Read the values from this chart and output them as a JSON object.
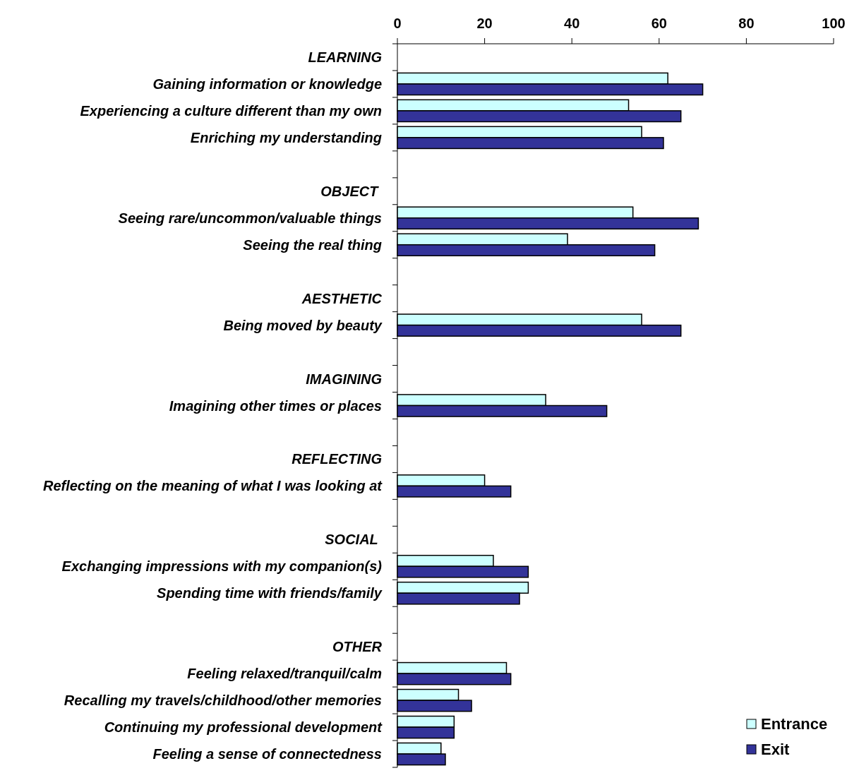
{
  "chart_data": {
    "type": "bar",
    "orientation": "horizontal",
    "categories": [
      "LEARNING",
      "Gaining information or knowledge",
      "Experiencing a culture different than my own",
      "Enriching my understanding",
      null,
      "OBJECT ",
      "Seeing rare/uncommon/valuable things",
      "Seeing the real thing",
      null,
      "AESTHETIC",
      "Being moved by beauty",
      null,
      "IMAGINING",
      "Imagining other times or places",
      null,
      "REFLECTING",
      "Reflecting on the meaning of what I was looking at",
      null,
      "SOCIAL ",
      "Exchanging impressions with my companion(s)",
      "Spending time with friends/family",
      null,
      "OTHER",
      "Feeling relaxed/tranquil/calm",
      "Recalling my travels/childhood/other memories",
      "Continuing my professional development",
      "Feeling a sense of connectedness"
    ],
    "series": [
      {
        "name": "Entrance",
        "color": "#ccffff",
        "values": [
          null,
          62,
          53,
          56,
          null,
          null,
          54,
          39,
          null,
          null,
          56,
          null,
          null,
          34,
          null,
          null,
          20,
          null,
          null,
          22,
          30,
          null,
          null,
          25,
          14,
          13,
          10
        ]
      },
      {
        "name": "Exit",
        "color": "#333399",
        "values": [
          null,
          70,
          65,
          61,
          null,
          null,
          69,
          59,
          null,
          null,
          65,
          null,
          null,
          48,
          null,
          null,
          26,
          null,
          null,
          30,
          28,
          null,
          null,
          26,
          17,
          13,
          11
        ]
      }
    ],
    "xlim": [
      0,
      100
    ],
    "xticks": [
      0,
      20,
      40,
      60,
      80,
      100
    ],
    "grid": false,
    "legend": "bottom right"
  }
}
